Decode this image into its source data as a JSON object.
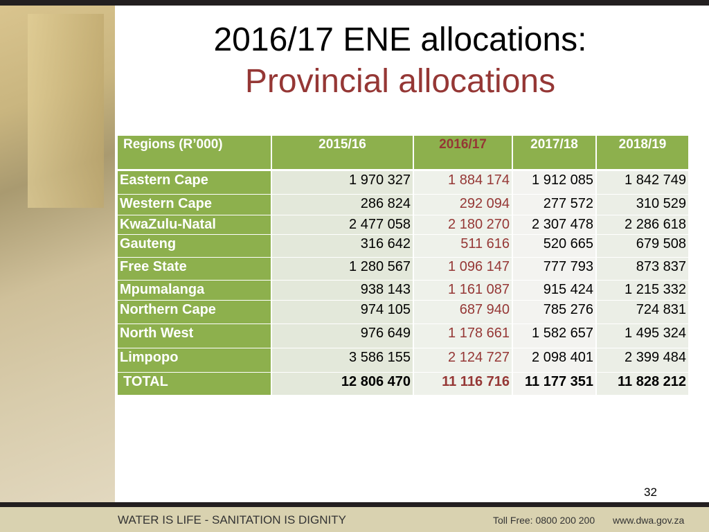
{
  "header": {
    "title": "2016/17 ENE allocations:",
    "subtitle": "Provincial allocations"
  },
  "table": {
    "columns": [
      "Regions (R’000)",
      "2015/16",
      "2016/17",
      "2017/18",
      "2018/19"
    ],
    "rows": [
      [
        "Eastern Cape",
        "1 970 327",
        "1 884 174",
        "1 912 085",
        "1 842 749"
      ],
      [
        "Western Cape",
        "286 824",
        "292 094",
        "277 572",
        "310 529"
      ],
      [
        "KwaZulu-Natal",
        "2 477 058",
        "2 180 270",
        "2 307 478",
        "2 286 618"
      ],
      [
        "Gauteng",
        "316 642",
        "511 616",
        "520 665",
        "679 508"
      ],
      [
        "Free State",
        "1 280 567",
        "1 096 147",
        "777 793",
        "873 837"
      ],
      [
        "Mpumalanga",
        "938 143",
        "1 161 087",
        "915 424",
        "1 215 332"
      ],
      [
        "Northern Cape",
        "974 105",
        "687 940",
        "785 276",
        "724 831"
      ],
      [
        "North West",
        "976 649",
        "1 178 661",
        "1 582 657",
        "1 495 324"
      ],
      [
        "Limpopo",
        "3 586 155",
        "2 124 727",
        "2 098 401",
        "2 399 484"
      ],
      [
        "TOTAL",
        "12 806 470",
        "11 116 716",
        "11 177 351",
        "11 828 212"
      ]
    ]
  },
  "page_number": "32",
  "footer": {
    "slogan": "WATER IS LIFE - SANITATION IS DIGNITY",
    "toll_free": "Toll Free: 0800 200 200",
    "website": "www.dwa.gov.za"
  }
}
